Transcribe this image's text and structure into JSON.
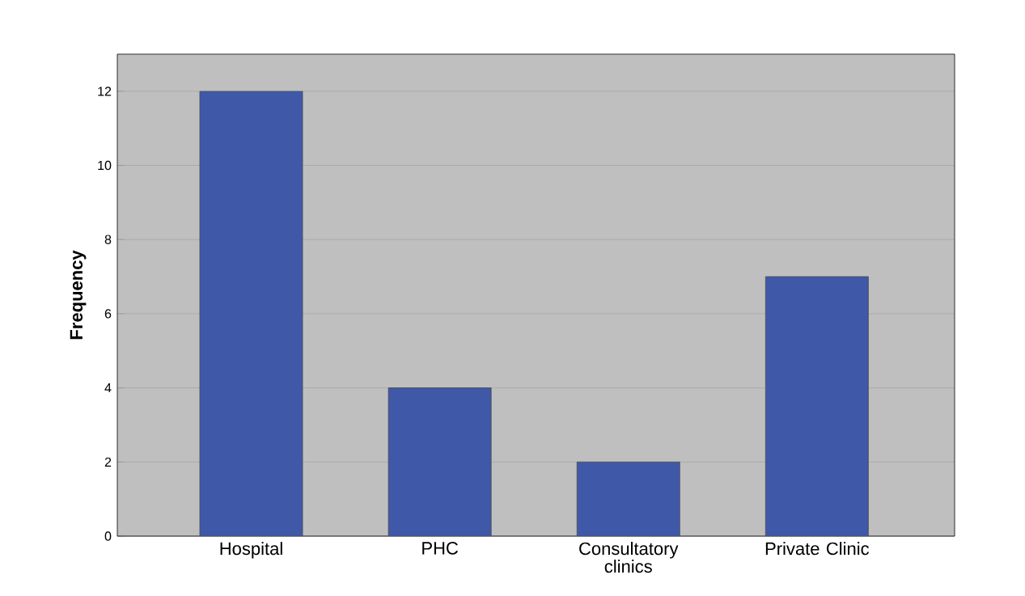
{
  "chart_data": {
    "type": "bar",
    "ylabel": "Frequency",
    "categories": [
      "Hospital",
      "PHC",
      "Consultatory clinics",
      "Private Clinic"
    ],
    "values": [
      12,
      4,
      2,
      7
    ],
    "color": "#3f58a8",
    "ylim": [
      0,
      13
    ],
    "yticks": [
      0,
      2,
      4,
      6,
      8,
      10,
      12
    ],
    "grid": "y"
  }
}
